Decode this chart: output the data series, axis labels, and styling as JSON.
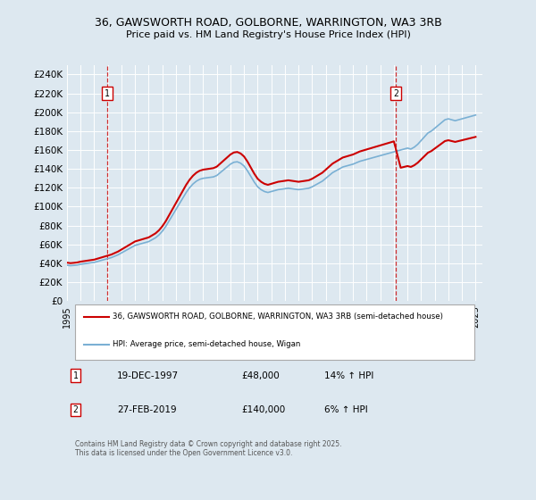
{
  "title_line1": "36, GAWSWORTH ROAD, GOLBORNE, WARRINGTON, WA3 3RB",
  "title_line2": "Price paid vs. HM Land Registry's House Price Index (HPI)",
  "background_color": "#dde8f0",
  "plot_bg_color": "#dde8f0",
  "ylim": [
    0,
    250000
  ],
  "yticks": [
    0,
    20000,
    40000,
    60000,
    80000,
    100000,
    120000,
    140000,
    160000,
    180000,
    200000,
    220000,
    240000
  ],
  "ytick_labels": [
    "£0",
    "£20K",
    "£40K",
    "£60K",
    "£80K",
    "£100K",
    "£120K",
    "£140K",
    "£160K",
    "£180K",
    "£200K",
    "£220K",
    "£240K"
  ],
  "xlim_start": 1995,
  "xlim_end": 2025.5,
  "xtick_years": [
    1995,
    1996,
    1997,
    1998,
    1999,
    2000,
    2001,
    2002,
    2003,
    2004,
    2005,
    2006,
    2007,
    2008,
    2009,
    2010,
    2011,
    2012,
    2013,
    2014,
    2015,
    2016,
    2017,
    2018,
    2019,
    2020,
    2021,
    2022,
    2023,
    2024,
    2025
  ],
  "red_line_color": "#cc0000",
  "blue_line_color": "#7ab0d4",
  "marker1_x": 1997.96,
  "marker1_y": 48000,
  "marker1_label": "1",
  "marker1_date": "19-DEC-1997",
  "marker1_price": "£48,000",
  "marker1_hpi": "14% ↑ HPI",
  "marker2_x": 2019.16,
  "marker2_y": 140000,
  "marker2_label": "2",
  "marker2_date": "27-FEB-2019",
  "marker2_price": "£140,000",
  "marker2_hpi": "6% ↑ HPI",
  "legend_label_red": "36, GAWSWORTH ROAD, GOLBORNE, WARRINGTON, WA3 3RB (semi-detached house)",
  "legend_label_blue": "HPI: Average price, semi-detached house, Wigan",
  "footer_text": "Contains HM Land Registry data © Crown copyright and database right 2025.\nThis data is licensed under the Open Government Licence v3.0.",
  "hpi_data_x": [
    1995.0,
    1995.25,
    1995.5,
    1995.75,
    1996.0,
    1996.25,
    1996.5,
    1996.75,
    1997.0,
    1997.25,
    1997.5,
    1997.75,
    1998.0,
    1998.25,
    1998.5,
    1998.75,
    1999.0,
    1999.25,
    1999.5,
    1999.75,
    2000.0,
    2000.25,
    2000.5,
    2000.75,
    2001.0,
    2001.25,
    2001.5,
    2001.75,
    2002.0,
    2002.25,
    2002.5,
    2002.75,
    2003.0,
    2003.25,
    2003.5,
    2003.75,
    2004.0,
    2004.25,
    2004.5,
    2004.75,
    2005.0,
    2005.25,
    2005.5,
    2005.75,
    2006.0,
    2006.25,
    2006.5,
    2006.75,
    2007.0,
    2007.25,
    2007.5,
    2007.75,
    2008.0,
    2008.25,
    2008.5,
    2008.75,
    2009.0,
    2009.25,
    2009.5,
    2009.75,
    2010.0,
    2010.25,
    2010.5,
    2010.75,
    2011.0,
    2011.25,
    2011.5,
    2011.75,
    2012.0,
    2012.25,
    2012.5,
    2012.75,
    2013.0,
    2013.25,
    2013.5,
    2013.75,
    2014.0,
    2014.25,
    2014.5,
    2014.75,
    2015.0,
    2015.25,
    2015.5,
    2015.75,
    2016.0,
    2016.25,
    2016.5,
    2016.75,
    2017.0,
    2017.25,
    2017.5,
    2017.75,
    2018.0,
    2018.25,
    2018.5,
    2018.75,
    2019.0,
    2019.25,
    2019.5,
    2019.75,
    2020.0,
    2020.25,
    2020.5,
    2020.75,
    2021.0,
    2021.25,
    2021.5,
    2021.75,
    2022.0,
    2022.25,
    2022.5,
    2022.75,
    2023.0,
    2023.25,
    2023.5,
    2023.75,
    2024.0,
    2024.25,
    2024.5,
    2024.75,
    2025.0
  ],
  "hpi_data_y": [
    38000,
    37500,
    37800,
    38200,
    39000,
    39500,
    40000,
    40500,
    41000,
    42000,
    43000,
    44000,
    45000,
    46000,
    47500,
    49000,
    51000,
    53000,
    55000,
    57000,
    59000,
    60000,
    61000,
    62000,
    63000,
    65000,
    67000,
    70000,
    74000,
    79000,
    85000,
    91000,
    97000,
    103000,
    109000,
    115000,
    120000,
    124000,
    127000,
    129000,
    130000,
    130500,
    131000,
    131500,
    133000,
    136000,
    139000,
    142000,
    145000,
    147000,
    147500,
    146000,
    143000,
    138000,
    132000,
    126000,
    121000,
    118000,
    116000,
    115000,
    116000,
    117000,
    118000,
    118500,
    119000,
    119500,
    119000,
    118500,
    118000,
    118500,
    119000,
    119500,
    121000,
    123000,
    125000,
    127000,
    130000,
    133000,
    136000,
    138000,
    140000,
    142000,
    143000,
    144000,
    145000,
    146500,
    148000,
    149000,
    150000,
    151000,
    152000,
    153000,
    154000,
    155000,
    156000,
    157000,
    158000,
    159000,
    160000,
    161000,
    162000,
    161000,
    163000,
    166000,
    170000,
    174000,
    178000,
    180000,
    183000,
    186000,
    189000,
    192000,
    193000,
    192000,
    191000,
    192000,
    193000,
    194000,
    195000,
    196000,
    197000
  ],
  "price_data_x": [
    1997.96,
    2019.16
  ],
  "price_data_y": [
    48000,
    140000
  ]
}
